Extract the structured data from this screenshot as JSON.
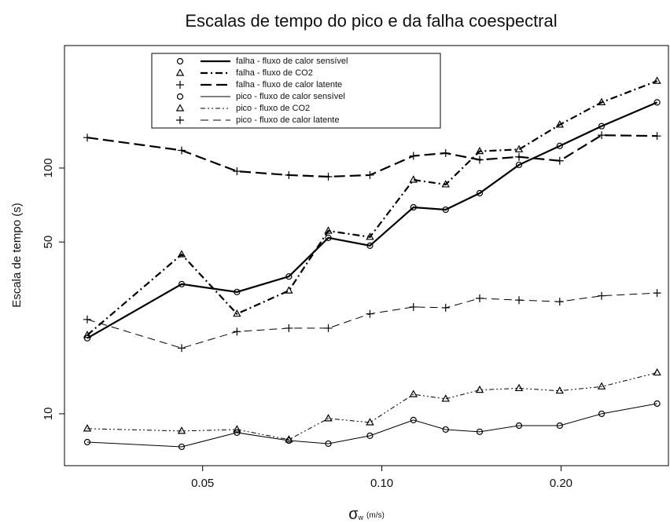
{
  "chart_data": {
    "type": "line",
    "title": "Escalas de tempo do pico e da falha coespectral",
    "x_label": {
      "symbol": "σ",
      "subscript": "w",
      "unit": "(m/s)"
    },
    "y_label": "Escala de tempo (s)",
    "xscale": "log",
    "yscale": "log",
    "xlim": [
      0.0293,
      0.303
    ],
    "ylim": [
      6.15,
      315
    ],
    "xticks": [
      0.05,
      {
        "value": 0.1,
        "label": "0.10"
      },
      {
        "value": 0.2,
        "label": "0.20"
      }
    ],
    "yticks": [
      10,
      50,
      100
    ],
    "legend": "top",
    "x": [
      0.032,
      0.0461,
      0.0571,
      0.0698,
      0.0813,
      0.0955,
      0.113,
      0.128,
      0.146,
      0.17,
      0.199,
      0.234,
      0.29
    ],
    "series": [
      {
        "name": "falha - fluxo de calor sensível",
        "color": "#000000",
        "marker": "circle",
        "linestyle": "solid",
        "linewidth": 2.2,
        "values": [
          20.3,
          33.7,
          31.3,
          36.2,
          52,
          48.3,
          69.2,
          67.7,
          79,
          103,
          123,
          148,
          185
        ]
      },
      {
        "name": "falha - fluxo de CO2",
        "color": "#000000",
        "marker": "triangle",
        "linestyle": "dashdot",
        "linewidth": 2.2,
        "values": [
          20.9,
          44.5,
          25.5,
          31.7,
          55.5,
          52.4,
          89.5,
          85.7,
          117,
          119,
          150,
          185,
          226
        ]
      },
      {
        "name": "falha - fluxo de calor latente",
        "color": "#000000",
        "marker": "plus",
        "linestyle": "longdash",
        "linewidth": 2.2,
        "values": [
          133,
          118,
          97,
          93.6,
          92.2,
          93.6,
          112,
          115,
          108,
          111,
          107,
          136,
          135
        ]
      },
      {
        "name": "pico - fluxo de calor sensível",
        "color": "#000000",
        "marker": "circle",
        "linestyle": "solid",
        "linewidth": 1,
        "values": [
          7.67,
          7.34,
          8.38,
          7.78,
          7.56,
          8.14,
          9.43,
          8.63,
          8.45,
          8.95,
          8.95,
          10.0,
          11.0
        ]
      },
      {
        "name": "pico - fluxo de CO2",
        "color": "#000000",
        "marker": "triangle",
        "linestyle": "dashdotdot",
        "linewidth": 1,
        "values": [
          8.7,
          8.51,
          8.63,
          7.85,
          9.57,
          9.22,
          12.0,
          11.5,
          12.5,
          12.7,
          12.4,
          12.9,
          14.7
        ]
      },
      {
        "name": "pico - fluxo de calor latente",
        "color": "#000000",
        "marker": "plus",
        "linestyle": "dash",
        "linewidth": 1,
        "values": [
          24.2,
          18.5,
          21.6,
          22.3,
          22.3,
          25.5,
          27.2,
          27.0,
          29.5,
          29.0,
          28.6,
          30.2,
          31.0
        ]
      }
    ]
  }
}
